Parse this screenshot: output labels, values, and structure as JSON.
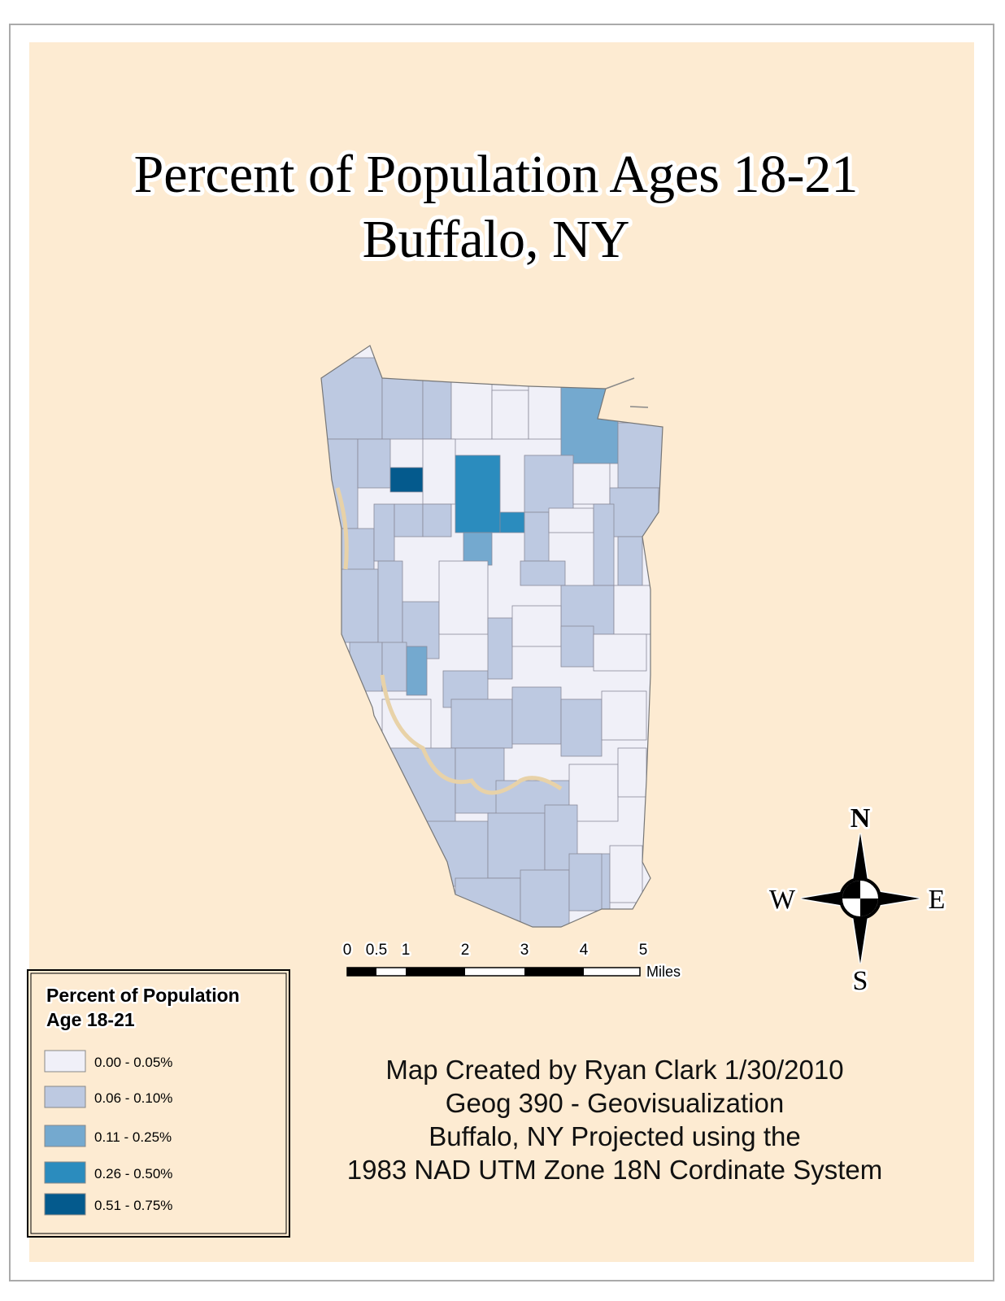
{
  "title": [
    "Percent of Population Ages 18-21",
    "Buffalo, NY"
  ],
  "scale_bar": {
    "labels": [
      "0",
      "0.5",
      "1",
      "2",
      "3",
      "4",
      "5"
    ],
    "unit": "Miles"
  },
  "compass": {
    "north": "N",
    "south": "S",
    "east": "E",
    "west": "W"
  },
  "legend": {
    "title": [
      "Percent of Population",
      "Age 18-21"
    ],
    "classes": [
      {
        "label": "0.00 - 0.05%",
        "color": "#f0f0f8"
      },
      {
        "label": "0.06 - 0.10%",
        "color": "#bdc9e1"
      },
      {
        "label": "0.11 - 0.25%",
        "color": "#74a9cf"
      },
      {
        "label": "0.26 - 0.50%",
        "color": "#2b8cbe"
      },
      {
        "label": "0.51 - 0.75%",
        "color": "#045a8d"
      }
    ]
  },
  "credits": [
    "Map Created by Ryan Clark 1/30/2010",
    "Geog 390 - Geovisualization",
    "Buffalo, NY Projected using the",
    "1983 NAD UTM Zone 18N Cordinate System"
  ]
}
